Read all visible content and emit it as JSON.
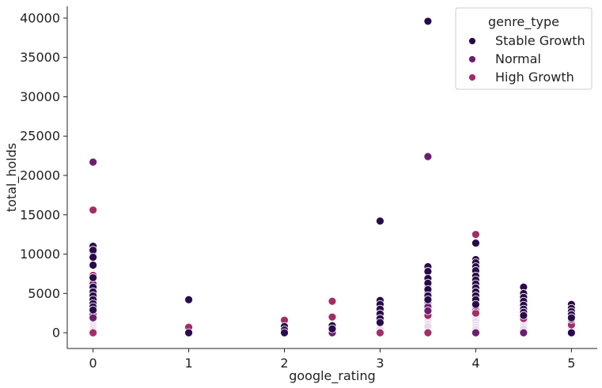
{
  "chart_data": {
    "type": "scatter",
    "xlabel": "google_rating",
    "ylabel": "total_holds",
    "xlim": [
      -0.27,
      5.27
    ],
    "ylim": [
      -2000,
      41500
    ],
    "xticks": [
      0,
      1,
      2,
      3,
      4,
      5
    ],
    "yticks": [
      0,
      5000,
      10000,
      15000,
      20000,
      25000,
      30000,
      35000,
      40000
    ],
    "grid": false,
    "legend": {
      "title": "genre_type",
      "placement": "top-right"
    },
    "series": [
      {
        "name": "Stable Growth",
        "color": "#2a0a4b",
        "points": [
          [
            0,
            11000
          ],
          [
            0,
            10500
          ],
          [
            0,
            9600
          ],
          [
            0,
            8600
          ],
          [
            0,
            7000
          ],
          [
            0,
            5800
          ],
          [
            0,
            5200
          ],
          [
            0,
            4700
          ],
          [
            0,
            4200
          ],
          [
            0,
            3700
          ],
          [
            0,
            3300
          ],
          [
            0,
            2900
          ],
          [
            1,
            4200
          ],
          [
            1,
            0
          ],
          [
            2,
            800
          ],
          [
            2,
            350
          ],
          [
            2,
            0
          ],
          [
            2.5,
            900
          ],
          [
            2.5,
            500
          ],
          [
            3,
            14200
          ],
          [
            3,
            4100
          ],
          [
            3,
            3600
          ],
          [
            3,
            3000
          ],
          [
            3,
            2400
          ],
          [
            3,
            1800
          ],
          [
            3,
            1300
          ],
          [
            3.5,
            39600
          ],
          [
            3.5,
            8400
          ],
          [
            3.5,
            7800
          ],
          [
            3.5,
            6900
          ],
          [
            3.5,
            6300
          ],
          [
            3.5,
            5500
          ],
          [
            3.5,
            4700
          ],
          [
            3.5,
            4200
          ],
          [
            4,
            11400
          ],
          [
            4,
            9300
          ],
          [
            4,
            8900
          ],
          [
            4,
            8400
          ],
          [
            4,
            7900
          ],
          [
            4,
            7200
          ],
          [
            4,
            6700
          ],
          [
            4,
            6200
          ],
          [
            4,
            5700
          ],
          [
            4,
            5200
          ],
          [
            4,
            4700
          ],
          [
            4,
            4200
          ],
          [
            4,
            3600
          ],
          [
            4.5,
            5800
          ],
          [
            4.5,
            5000
          ],
          [
            4.5,
            4500
          ],
          [
            4.5,
            4000
          ],
          [
            4.5,
            3500
          ],
          [
            4.5,
            3000
          ],
          [
            4.5,
            2600
          ],
          [
            4.5,
            2200
          ],
          [
            5,
            3600
          ],
          [
            5,
            3100
          ],
          [
            5,
            2700
          ],
          [
            5,
            2300
          ],
          [
            5,
            1900
          ],
          [
            5,
            0
          ]
        ]
      },
      {
        "name": "Normal",
        "color": "#6b1f70",
        "points": [
          [
            0,
            21700
          ],
          [
            0,
            10300
          ],
          [
            0,
            6200
          ],
          [
            0,
            5400
          ],
          [
            0,
            4400
          ],
          [
            0,
            3900
          ],
          [
            0,
            3500
          ],
          [
            0,
            3100
          ],
          [
            0,
            2700
          ],
          [
            0,
            2300
          ],
          [
            0,
            1900
          ],
          [
            2.5,
            0
          ],
          [
            3,
            2700
          ],
          [
            3,
            2100
          ],
          [
            3,
            1600
          ],
          [
            3.5,
            22400
          ],
          [
            3.5,
            6600
          ],
          [
            3.5,
            5100
          ],
          [
            3.5,
            4400
          ],
          [
            3.5,
            3900
          ],
          [
            3.5,
            3300
          ],
          [
            3.5,
            2800
          ],
          [
            4,
            9000
          ],
          [
            4,
            8100
          ],
          [
            4,
            6900
          ],
          [
            4,
            6400
          ],
          [
            4,
            5900
          ],
          [
            4,
            5400
          ],
          [
            4,
            4900
          ],
          [
            4,
            4400
          ],
          [
            4,
            3900
          ],
          [
            4,
            3400
          ],
          [
            4,
            0
          ],
          [
            4.5,
            4700
          ],
          [
            4.5,
            4200
          ],
          [
            4.5,
            3700
          ],
          [
            4.5,
            3200
          ],
          [
            4.5,
            2800
          ],
          [
            4.5,
            2400
          ],
          [
            4.5,
            0
          ],
          [
            5,
            2900
          ],
          [
            5,
            2500
          ],
          [
            5,
            2100
          ],
          [
            5,
            1700
          ]
        ]
      },
      {
        "name": "High Growth",
        "color": "#a42c69",
        "points": [
          [
            0,
            15600
          ],
          [
            0,
            7300
          ],
          [
            0,
            4900
          ],
          [
            0,
            4000
          ],
          [
            0,
            3000
          ],
          [
            0,
            2400
          ],
          [
            0,
            1800
          ],
          [
            0,
            0
          ],
          [
            1,
            700
          ],
          [
            2,
            1600
          ],
          [
            2.5,
            4000
          ],
          [
            2.5,
            2000
          ],
          [
            3,
            3100
          ],
          [
            3,
            2200
          ],
          [
            3,
            0
          ],
          [
            3.5,
            5800
          ],
          [
            3.5,
            4900
          ],
          [
            3.5,
            3700
          ],
          [
            3.5,
            3000
          ],
          [
            3.5,
            2600
          ],
          [
            3.5,
            2200
          ],
          [
            3.5,
            0
          ],
          [
            4,
            12500
          ],
          [
            4,
            7500
          ],
          [
            4,
            6000
          ],
          [
            4,
            5000
          ],
          [
            4,
            4000
          ],
          [
            4,
            3000
          ],
          [
            4,
            2500
          ],
          [
            4.5,
            3400
          ],
          [
            4.5,
            2600
          ],
          [
            4.5,
            1800
          ],
          [
            5,
            2000
          ],
          [
            5,
            1400
          ],
          [
            5,
            1000
          ]
        ]
      },
      {
        "name": "",
        "color": "#e6d8ea",
        "points": [
          [
            0,
            2200
          ],
          [
            0,
            1600
          ],
          [
            0,
            1200
          ],
          [
            0,
            900
          ],
          [
            0,
            600
          ],
          [
            0,
            300
          ],
          [
            3,
            1000
          ],
          [
            3,
            700
          ],
          [
            3,
            400
          ],
          [
            3.5,
            2000
          ],
          [
            3.5,
            1500
          ],
          [
            3.5,
            1100
          ],
          [
            3.5,
            800
          ],
          [
            4,
            2200
          ],
          [
            4,
            1800
          ],
          [
            4,
            1400
          ],
          [
            4,
            1000
          ],
          [
            4,
            700
          ],
          [
            4,
            400
          ],
          [
            4.5,
            1500
          ],
          [
            4.5,
            1100
          ],
          [
            4.5,
            800
          ],
          [
            4.5,
            500
          ],
          [
            5,
            1200
          ],
          [
            5,
            800
          ],
          [
            5,
            500
          ]
        ]
      }
    ]
  }
}
